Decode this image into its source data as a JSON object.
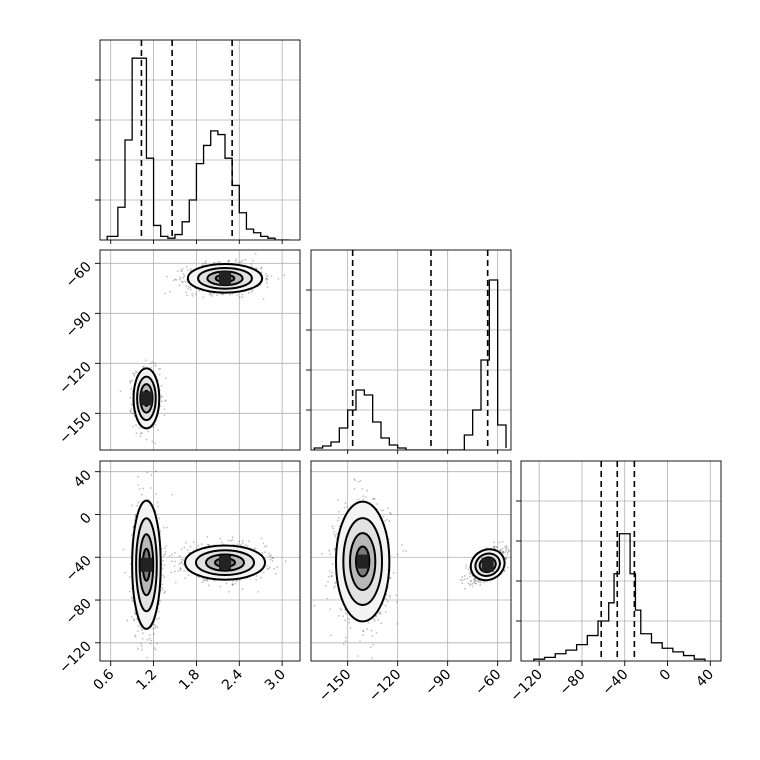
{
  "chart_data": {
    "type": "corner",
    "parameters": [
      {
        "id": "p0",
        "range": [
          0.45,
          3.25
        ],
        "ticks": [
          0.6,
          1.2,
          1.8,
          2.4,
          3.0
        ],
        "tick_labels": [
          "0.6",
          "1.2",
          "1.8",
          "2.4",
          "3.0"
        ]
      },
      {
        "id": "p1",
        "range": [
          -172,
          -52
        ],
        "ticks": [
          -60,
          -90,
          -120,
          -150
        ],
        "tick_labels": [
          "−60",
          "−90",
          "−120",
          "−150"
        ]
      },
      {
        "id": "p2",
        "range": [
          -137,
          50
        ],
        "ticks": [
          40,
          0,
          -40,
          -80,
          -120
        ],
        "tick_labels": [
          "40",
          "0",
          "−40",
          "−80",
          "−120"
        ]
      }
    ],
    "bottom_x_tick_labels": [
      [
        "0.6",
        "1.2",
        "1.8",
        "2.4",
        "3.0"
      ],
      [
        "−150",
        "−120",
        "−90",
        "−60"
      ],
      [
        "−120",
        "−80",
        "−40",
        "0",
        "40"
      ]
    ],
    "bottom_x_ticks": [
      [
        0.6,
        1.2,
        1.8,
        2.4,
        3.0
      ],
      [
        -150,
        -120,
        -90,
        -60
      ],
      [
        -120,
        -80,
        -40,
        0,
        40
      ]
    ],
    "histograms": [
      {
        "param": "p0",
        "bin_edges": [
          0.55,
          0.7,
          0.8,
          0.9,
          1.0,
          1.1,
          1.2,
          1.3,
          1.4,
          1.5,
          1.6,
          1.7,
          1.8,
          1.9,
          2.0,
          2.1,
          2.2,
          2.3,
          2.4,
          2.5,
          2.6,
          2.7,
          2.8,
          2.9,
          3.0,
          3.1
        ],
        "counts": [
          2,
          18,
          55,
          100,
          100,
          45,
          8,
          2,
          1,
          3,
          10,
          22,
          42,
          52,
          60,
          58,
          45,
          30,
          15,
          6,
          4,
          2,
          1,
          0,
          0
        ],
        "ymax": 110,
        "quantiles": [
          1.03,
          1.46,
          2.3
        ]
      },
      {
        "param": "p1",
        "bin_edges": [
          -170,
          -165,
          -160,
          -155,
          -150,
          -145,
          -140,
          -135,
          -130,
          -125,
          -120,
          -115,
          -110,
          -105,
          -100,
          -95,
          -90,
          -85,
          -80,
          -75,
          -70,
          -65,
          -60,
          -55
        ],
        "counts": [
          2,
          4,
          8,
          22,
          40,
          60,
          55,
          28,
          12,
          5,
          2,
          0,
          0,
          0,
          0,
          0,
          0,
          0,
          15,
          40,
          90,
          170,
          25,
          2
        ],
        "ymax": 200,
        "quantiles": [
          -147,
          -100,
          -66
        ]
      },
      {
        "param": "p2",
        "bin_edges": [
          -125,
          -115,
          -105,
          -95,
          -85,
          -75,
          -65,
          -55,
          -50,
          -45,
          -40,
          -35,
          -30,
          -25,
          -15,
          -5,
          5,
          15,
          25,
          35
        ],
        "counts": [
          1,
          2,
          4,
          6,
          9,
          14,
          22,
          32,
          48,
          70,
          70,
          48,
          28,
          15,
          10,
          7,
          5,
          3,
          1
        ],
        "ymax": 110,
        "quantiles": [
          -62,
          -47,
          -31
        ]
      }
    ],
    "panels_2d": [
      {
        "x_param": "p0",
        "y_param": "p1",
        "clusters": [
          {
            "cx": 1.1,
            "cy": -141,
            "sx": 0.09,
            "sy": 9,
            "n": 700
          },
          {
            "cx": 2.2,
            "cy": -69,
            "sx": 0.26,
            "sy": 4.3,
            "n": 900
          }
        ]
      },
      {
        "x_param": "p0",
        "y_param": "p2",
        "clusters": [
          {
            "cx": 1.1,
            "cy": -47,
            "sx": 0.1,
            "sy": 30,
            "n": 800
          },
          {
            "cx": 2.2,
            "cy": -45,
            "sx": 0.28,
            "sy": 8,
            "n": 850
          }
        ]
      },
      {
        "x_param": "p1",
        "y_param": "p2",
        "clusters": [
          {
            "cx": -141,
            "cy": -44,
            "sx": 8,
            "sy": 28,
            "n": 850
          },
          {
            "cx": -66,
            "cy": -47,
            "sx": 5.2,
            "sy": 7,
            "n": 700,
            "rho": 0.65
          }
        ]
      }
    ],
    "grid": true
  }
}
